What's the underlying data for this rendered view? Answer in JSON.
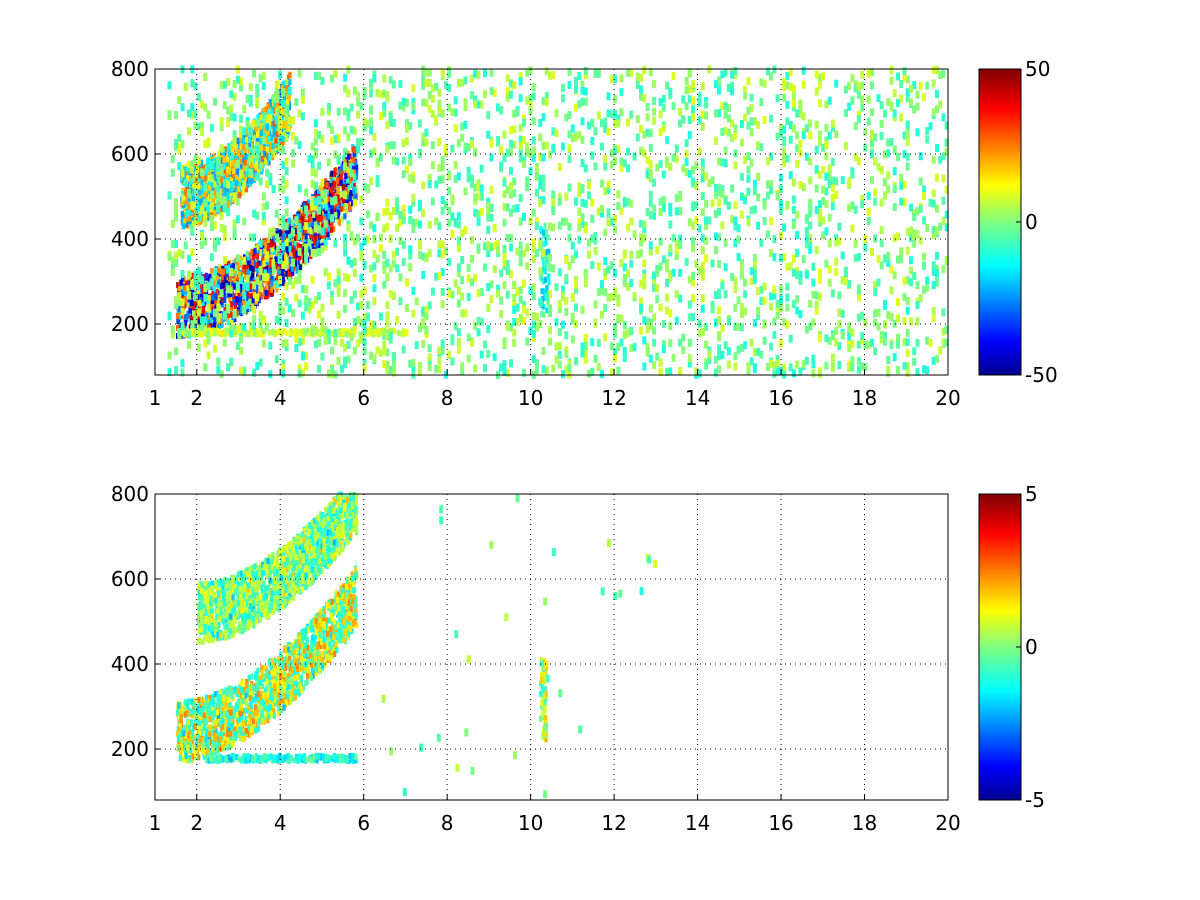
{
  "chart_data": [
    {
      "type": "heatmap",
      "title": "",
      "xlabel": "",
      "ylabel": "",
      "xlim": [
        1,
        20
      ],
      "ylim": [
        80,
        800
      ],
      "x_ticks": [
        1,
        2,
        4,
        6,
        8,
        10,
        12,
        14,
        16,
        18,
        20
      ],
      "y_ticks": [
        200,
        400,
        600,
        800
      ],
      "grid": true,
      "colormap": "jet",
      "color_range": [
        -50,
        50
      ],
      "colorbar_ticks": [
        -50,
        0,
        50
      ],
      "colorbar_placement": "right",
      "features": [
        {
          "name": "lower ridge",
          "x_start": 1.5,
          "x_end": 5.8,
          "y_start": 240,
          "y_end": 560,
          "positive_value": 45,
          "negative_value": -48
        },
        {
          "name": "upper ridge",
          "x_start": 1.6,
          "x_end": 4.2,
          "y_start": 500,
          "y_end": 720,
          "positive_value": 30,
          "negative_value": -25
        },
        {
          "name": "band near 180",
          "x_start": 1.5,
          "x_end": 7.0,
          "y_start": 175,
          "y_end": 185,
          "positive_value": 15,
          "negative_value": 0
        },
        {
          "name": "column near 10.2",
          "x_start": 10.2,
          "x_end": 10.4,
          "y_start": 220,
          "y_end": 440,
          "positive_value": 0,
          "negative_value": -20
        }
      ],
      "noise_x_range": [
        1.3,
        20
      ],
      "noise_value_range": [
        -10,
        10
      ]
    },
    {
      "type": "heatmap",
      "title": "",
      "xlabel": "",
      "ylabel": "",
      "xlim": [
        1,
        20
      ],
      "ylim": [
        80,
        800
      ],
      "x_ticks": [
        1,
        2,
        4,
        6,
        8,
        10,
        12,
        14,
        16,
        18,
        20
      ],
      "y_ticks": [
        200,
        400,
        600,
        800
      ],
      "grid": true,
      "colormap": "jet",
      "color_range": [
        -5,
        5
      ],
      "colorbar_ticks": [
        -5,
        0,
        5
      ],
      "colorbar_placement": "right",
      "features": [
        {
          "name": "lower ridge",
          "x_start": 1.5,
          "x_end": 5.8,
          "y_start": 240,
          "y_end": 560,
          "positive_value": 2.5,
          "negative_value": -1
        },
        {
          "name": "upper ridge",
          "x_start": 2.0,
          "x_end": 5.8,
          "y_start": 520,
          "y_end": 780,
          "positive_value": 1,
          "negative_value": -1
        },
        {
          "name": "band near 180",
          "x_start": 2.2,
          "x_end": 5.8,
          "y_start": 172,
          "y_end": 184,
          "positive_value": 0,
          "negative_value": -2
        },
        {
          "name": "column near 10.2",
          "x_start": 10.2,
          "x_end": 10.35,
          "y_start": 220,
          "y_end": 410,
          "positive_value": 2,
          "negative_value": -1
        }
      ],
      "noise_x_range": [
        5.8,
        13
      ],
      "noise_value_range": [
        -1,
        1
      ]
    }
  ]
}
